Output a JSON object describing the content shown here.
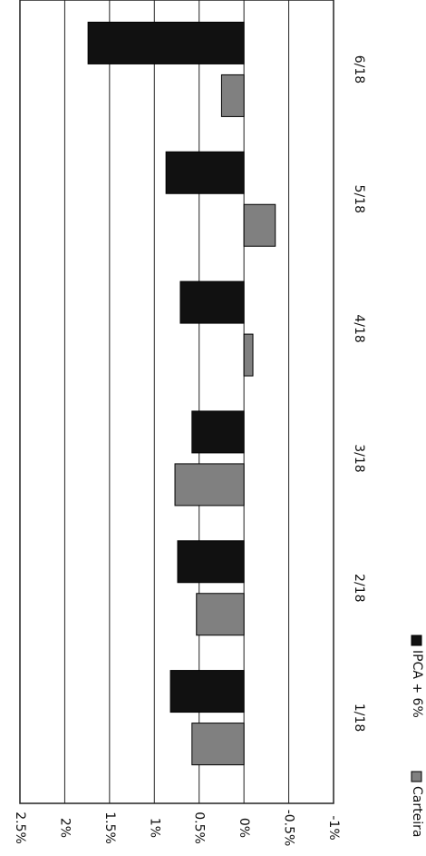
{
  "chart_data": {
    "type": "bar",
    "categories": [
      "1/18",
      "2/18",
      "3/18",
      "4/18",
      "5/18",
      "6/18"
    ],
    "series": [
      {
        "name": "Carteira",
        "color": "#808080",
        "values": [
          0.58,
          0.53,
          0.77,
          -0.1,
          -0.35,
          0.25
        ]
      },
      {
        "name": "IPCA + 6%",
        "color": "#111111",
        "values": [
          0.82,
          0.74,
          0.58,
          0.71,
          0.87,
          1.74
        ]
      }
    ],
    "ylim": [
      -1,
      2.5
    ],
    "yticks": [
      {
        "value": -1,
        "label": "-1%"
      },
      {
        "value": -0.5,
        "label": "-0.5%"
      },
      {
        "value": 0,
        "label": "0%"
      },
      {
        "value": 0.5,
        "label": "0.5%"
      },
      {
        "value": 1,
        "label": "1%"
      },
      {
        "value": 1.5,
        "label": "1.5%"
      },
      {
        "value": 2,
        "label": "2%"
      },
      {
        "value": 2.5,
        "label": "2.5%"
      }
    ],
    "grid": true
  }
}
